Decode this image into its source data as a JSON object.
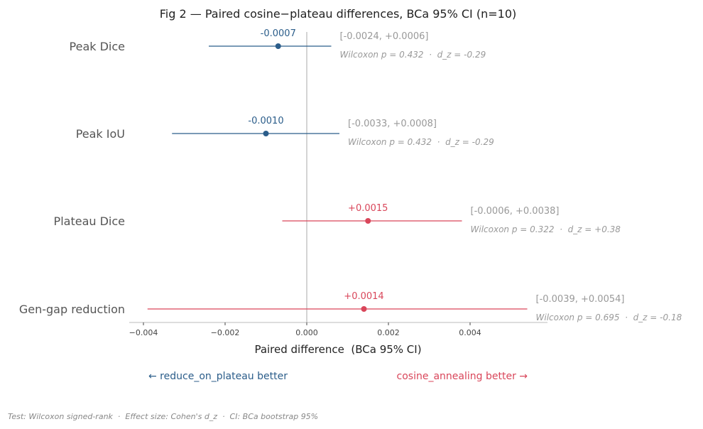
{
  "chart_data": {
    "type": "forest",
    "title": "Fig 2 — Paired cosine−plateau differences, BCa 95% CI (n=10)",
    "xlabel": "Paired difference  (BCa 95% CI)",
    "xlim": [
      -0.0043,
      0.0058
    ],
    "x_ticks": [
      {
        "value": -0.004,
        "label": "−0.004"
      },
      {
        "value": -0.002,
        "label": "−0.002"
      },
      {
        "value": 0.0,
        "label": "0.000"
      },
      {
        "value": 0.002,
        "label": "0.002"
      },
      {
        "value": 0.004,
        "label": "0.004"
      }
    ],
    "reference_line": 0,
    "grid": false,
    "series": [
      {
        "category": "Peak Dice",
        "estimate": -0.0007,
        "estimate_label": "-0.0007",
        "ci": [
          -0.0024,
          0.0006
        ],
        "ci_label": "[-0.0024, +0.0006]",
        "stat_label": "Wilcoxon p = 0.432  ·  d_z = -0.29",
        "color": "#2b5d8a"
      },
      {
        "category": "Peak IoU",
        "estimate": -0.001,
        "estimate_label": "-0.0010",
        "ci": [
          -0.0033,
          0.0008
        ],
        "ci_label": "[-0.0033, +0.0008]",
        "stat_label": "Wilcoxon p = 0.432  ·  d_z = -0.29",
        "color": "#2b5d8a"
      },
      {
        "category": "Plateau Dice",
        "estimate": 0.0015,
        "estimate_label": "+0.0015",
        "ci": [
          -0.0006,
          0.0038
        ],
        "ci_label": "[-0.0006, +0.0038]",
        "stat_label": "Wilcoxon p = 0.322  ·  d_z = +0.38",
        "color": "#d9465a"
      },
      {
        "category": "Gen-gap reduction",
        "estimate": 0.0014,
        "estimate_label": "+0.0014",
        "ci": [
          -0.0039,
          0.0054
        ],
        "ci_label": "[-0.0039, +0.0054]",
        "stat_label": "Wilcoxon p = 0.695  ·  d_z = -0.18",
        "color": "#d9465a"
      }
    ],
    "direction_labels": {
      "left": "← reduce_on_plateau better",
      "right": "cosine_annealing better →",
      "left_color": "#2b5d8a",
      "right_color": "#d9465a"
    },
    "footnote": "Test: Wilcoxon signed-rank  ·  Effect size: Cohen's d_z  ·  CI: BCa bootstrap 95%"
  }
}
